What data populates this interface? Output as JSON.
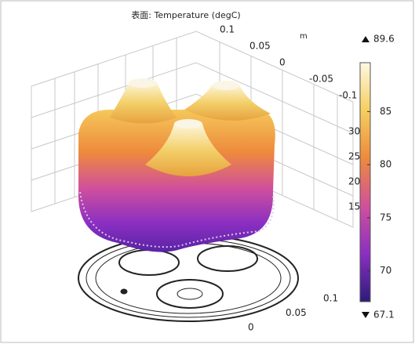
{
  "chart_data": {
    "type": "surface3d",
    "title": "表面: Temperature (degC)",
    "x_unit": "m",
    "xticks": [
      0.1,
      0.05,
      0,
      -0.05,
      -0.1
    ],
    "yticks": [
      0.1,
      0.05,
      0
    ],
    "zticks": [
      30,
      25,
      20,
      15
    ],
    "colorbar": {
      "max": 89.6,
      "min": 67.1,
      "ticks": [
        70,
        75,
        80,
        85
      ],
      "colors": [
        "#2d1b7a",
        "#8a2fc2",
        "#d1509c",
        "#ee8a3c",
        "#f5cf5e",
        "#fdf8e2"
      ]
    }
  }
}
